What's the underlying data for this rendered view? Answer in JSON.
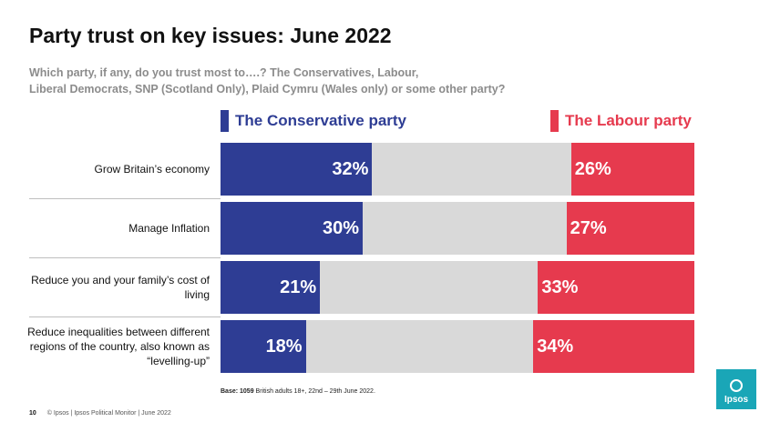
{
  "title": "Party trust on key issues: June 2022",
  "subtitle_line1": "Which party, if any, do you trust most to….? The Conservatives, Labour,",
  "subtitle_line2": "Liberal Democrats, SNP (Scotland Only), Plaid Cymru (Wales only) or some other party?",
  "colors": {
    "conservative": "#2e3d94",
    "labour": "#e63a4e",
    "neutral": "#d9d9d9"
  },
  "chart_data": {
    "type": "bar",
    "orientation": "horizontal-opposed",
    "categories": [
      "Grow Britain’s economy",
      "Manage Inflation",
      "Reduce you and your family’s cost of living",
      "Reduce inequalities between different regions of the country, also known as “levelling-up”"
    ],
    "series": [
      {
        "name": "The Conservative party",
        "values": [
          32,
          30,
          21,
          18
        ],
        "labels": [
          "32%",
          "30%",
          "21%",
          "18%"
        ]
      },
      {
        "name": "The Labour party",
        "values": [
          26,
          27,
          33,
          34
        ],
        "labels": [
          "26%",
          "27%",
          "33%",
          "34%"
        ]
      }
    ],
    "unit": "%",
    "xlim": [
      0,
      100
    ]
  },
  "base_bold": "Base: 1059",
  "base_text": " British adults 18+, 22nd – 29th June 2022.",
  "footer_page": "10",
  "footer_text": "© Ipsos | Ipsos  Political Monitor | June 2022",
  "logo_text": "Ipsos"
}
